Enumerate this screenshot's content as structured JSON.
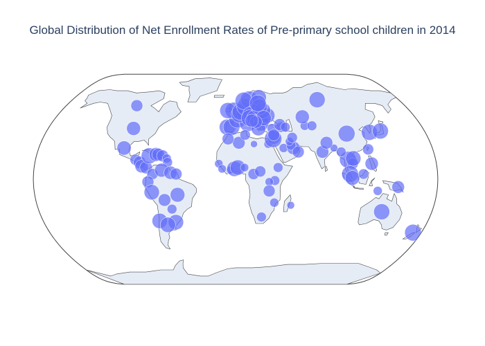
{
  "title": "Global Distribution of Net Enrollment Rates of Pre-primary school children in 2014",
  "colors": {
    "land": "#e5ecf6",
    "coastline": "#444444",
    "frame": "#444444",
    "marker": "#636efa"
  },
  "chart_data": {
    "type": "scatter-geo",
    "projection": "natural earth",
    "marker_opacity": 0.7,
    "points": [
      {
        "lon": -105,
        "lat": 57,
        "v": 55
      },
      {
        "lon": -98,
        "lat": 39,
        "v": 70
      },
      {
        "lon": -102,
        "lat": 24,
        "v": 72
      },
      {
        "lon": -90,
        "lat": 15,
        "v": 50
      },
      {
        "lon": -86,
        "lat": 13,
        "v": 60
      },
      {
        "lon": -84,
        "lat": 10,
        "v": 65
      },
      {
        "lon": -80,
        "lat": 9,
        "v": 60
      },
      {
        "lon": -78,
        "lat": 18,
        "v": 85
      },
      {
        "lon": -72,
        "lat": 19,
        "v": 70
      },
      {
        "lon": -70,
        "lat": 19,
        "v": 60
      },
      {
        "lon": -66,
        "lat": 18,
        "v": 55
      },
      {
        "lon": -62,
        "lat": 16,
        "v": 35
      },
      {
        "lon": -61,
        "lat": 13,
        "v": 40
      },
      {
        "lon": -74,
        "lat": 4,
        "v": 50
      },
      {
        "lon": -66,
        "lat": 7,
        "v": 70
      },
      {
        "lon": -58,
        "lat": 5,
        "v": 65
      },
      {
        "lon": -53,
        "lat": 4,
        "v": 55
      },
      {
        "lon": -78,
        "lat": -2,
        "v": 55
      },
      {
        "lon": -75,
        "lat": -10,
        "v": 80
      },
      {
        "lon": -64,
        "lat": -16,
        "v": 60
      },
      {
        "lon": -52,
        "lat": -12,
        "v": 75
      },
      {
        "lon": -58,
        "lat": -23,
        "v": 40
      },
      {
        "lon": -71,
        "lat": -32,
        "v": 80
      },
      {
        "lon": -56,
        "lat": -33,
        "v": 80
      },
      {
        "lon": -64,
        "lat": -35,
        "v": 80
      },
      {
        "lon": -8,
        "lat": 40,
        "v": 85
      },
      {
        "lon": -4,
        "lat": 40,
        "v": 90
      },
      {
        "lon": 2,
        "lat": 46,
        "v": 95
      },
      {
        "lon": -2,
        "lat": 53,
        "v": 90
      },
      {
        "lon": -8,
        "lat": 53,
        "v": 85
      },
      {
        "lon": 10,
        "lat": 51,
        "v": 95
      },
      {
        "lon": 12,
        "lat": 43,
        "v": 90
      },
      {
        "lon": 4,
        "lat": 50,
        "v": 90
      },
      {
        "lon": 5,
        "lat": 52,
        "v": 90
      },
      {
        "lon": 10,
        "lat": 56,
        "v": 90
      },
      {
        "lon": 15,
        "lat": 62,
        "v": 95
      },
      {
        "lon": 9,
        "lat": 61,
        "v": 95
      },
      {
        "lon": 26,
        "lat": 64,
        "v": 80
      },
      {
        "lon": 19,
        "lat": 52,
        "v": 80
      },
      {
        "lon": 15,
        "lat": 50,
        "v": 80
      },
      {
        "lon": 14,
        "lat": 47,
        "v": 90
      },
      {
        "lon": 19,
        "lat": 47,
        "v": 85
      },
      {
        "lon": 25,
        "lat": 46,
        "v": 80
      },
      {
        "lon": 25,
        "lat": 43,
        "v": 80
      },
      {
        "lon": 22,
        "lat": 39,
        "v": 75
      },
      {
        "lon": 32,
        "lat": 49,
        "v": 80
      },
      {
        "lon": 28,
        "lat": 53,
        "v": 85
      },
      {
        "lon": 25,
        "lat": 56,
        "v": 85
      },
      {
        "lon": 24,
        "lat": 59,
        "v": 90
      },
      {
        "lon": 28,
        "lat": 47,
        "v": 80
      },
      {
        "lon": 20,
        "lat": 44,
        "v": 60
      },
      {
        "lon": 16,
        "lat": 45,
        "v": 65
      },
      {
        "lon": 35,
        "lat": 39,
        "v": 40
      },
      {
        "lon": 44,
        "lat": 40,
        "v": 45
      },
      {
        "lon": 43,
        "lat": 42,
        "v": 55
      },
      {
        "lon": 48,
        "lat": 40,
        "v": 40
      },
      {
        "lon": 3,
        "lat": 28,
        "v": 60
      },
      {
        "lon": 9,
        "lat": 34,
        "v": 45
      },
      {
        "lon": -7,
        "lat": 31,
        "v": 55
      },
      {
        "lon": 30,
        "lat": 27,
        "v": 30
      },
      {
        "lon": 17,
        "lat": 27,
        "v": 20
      },
      {
        "lon": 36,
        "lat": 32,
        "v": 65
      },
      {
        "lon": 35,
        "lat": 31,
        "v": 95
      },
      {
        "lon": 36,
        "lat": 34,
        "v": 55
      },
      {
        "lon": 44,
        "lat": 24,
        "v": 35
      },
      {
        "lon": 53,
        "lat": 24,
        "v": 65
      },
      {
        "lon": 51,
        "lat": 26,
        "v": 40
      },
      {
        "lon": 57,
        "lat": 21,
        "v": 55
      },
      {
        "lon": 50,
        "lat": 29,
        "v": 30
      },
      {
        "lon": 53,
        "lat": 32,
        "v": 45
      },
      {
        "lon": 67,
        "lat": 41,
        "v": 35
      },
      {
        "lon": 67,
        "lat": 48,
        "v": 70
      },
      {
        "lon": 74,
        "lat": 41,
        "v": 40
      },
      {
        "lon": 90,
        "lat": 62,
        "v": 85
      },
      {
        "lon": 79,
        "lat": 21,
        "v": 60
      },
      {
        "lon": 90,
        "lat": 24,
        "v": 25
      },
      {
        "lon": 84,
        "lat": 28,
        "v": 60
      },
      {
        "lon": 105,
        "lat": 35,
        "v": 90
      },
      {
        "lon": 127,
        "lat": 36,
        "v": 85
      },
      {
        "lon": 138,
        "lat": 37,
        "v": 85
      },
      {
        "lon": 121,
        "lat": 23,
        "v": 50
      },
      {
        "lon": 101,
        "lat": 15,
        "v": 90
      },
      {
        "lon": 105,
        "lat": 12,
        "v": 50
      },
      {
        "lon": 106,
        "lat": 16,
        "v": 80
      },
      {
        "lon": 96,
        "lat": 21,
        "v": 40
      },
      {
        "lon": 102,
        "lat": 4,
        "v": 90
      },
      {
        "lon": 104,
        "lat": 1,
        "v": 75
      },
      {
        "lon": 114,
        "lat": 4,
        "v": 45
      },
      {
        "lon": 122,
        "lat": 12,
        "v": 65
      },
      {
        "lon": 127,
        "lat": -9,
        "v": 35
      },
      {
        "lon": 145,
        "lat": -6,
        "v": 60
      },
      {
        "lon": 134,
        "lat": -25,
        "v": 85
      },
      {
        "lon": 172,
        "lat": -41,
        "v": 90
      },
      {
        "lon": -15,
        "lat": 12,
        "v": 30
      },
      {
        "lon": -12,
        "lat": 8,
        "v": 30
      },
      {
        "lon": -5,
        "lat": 7,
        "v": 25
      },
      {
        "lon": -1,
        "lat": 8,
        "v": 80
      },
      {
        "lon": 2,
        "lat": 9,
        "v": 80
      },
      {
        "lon": 8,
        "lat": 9,
        "v": 30
      },
      {
        "lon": 16,
        "lat": 4,
        "v": 50
      },
      {
        "lon": 22,
        "lat": 6,
        "v": 50
      },
      {
        "lon": 38,
        "lat": 9,
        "v": 40
      },
      {
        "lon": 35,
        "lat": -1,
        "v": 40
      },
      {
        "lon": 30,
        "lat": -2,
        "v": 30
      },
      {
        "lon": 30,
        "lat": -9,
        "v": 55
      },
      {
        "lon": 35,
        "lat": -18,
        "v": 35
      },
      {
        "lon": 24,
        "lat": -29,
        "v": 40
      },
      {
        "lon": 50,
        "lat": -20,
        "v": 25
      }
    ]
  }
}
